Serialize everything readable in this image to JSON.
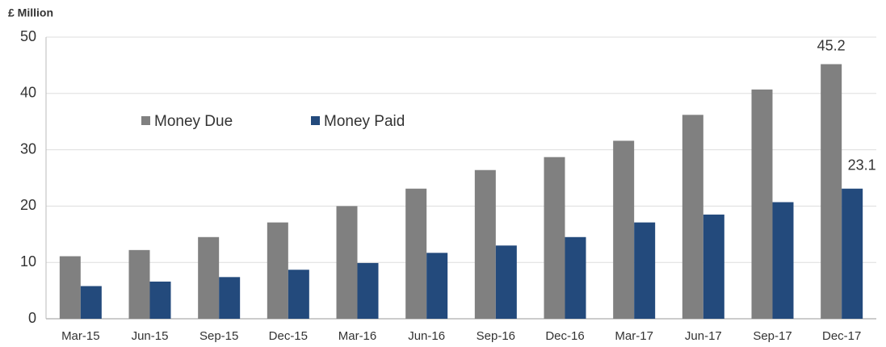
{
  "chart_data": {
    "type": "bar",
    "y_axis_label": "£ Million",
    "categories": [
      "Mar-15",
      "Jun-15",
      "Sep-15",
      "Dec-15",
      "Mar-16",
      "Jun-16",
      "Sep-16",
      "Dec-16",
      "Mar-17",
      "Jun-17",
      "Sep-17",
      "Dec-17"
    ],
    "series": [
      {
        "name": "Money Due",
        "color": "#808080",
        "values": [
          11.1,
          12.2,
          14.5,
          17.1,
          20.0,
          23.1,
          26.4,
          28.7,
          31.6,
          36.2,
          40.7,
          45.2
        ]
      },
      {
        "name": "Money Paid",
        "color": "#234a7c",
        "values": [
          5.8,
          6.6,
          7.4,
          8.7,
          9.9,
          11.7,
          13.0,
          14.5,
          17.1,
          18.5,
          20.7,
          23.1
        ]
      }
    ],
    "ylim": [
      0,
      50
    ],
    "yticks": [
      0,
      10,
      20,
      30,
      40,
      50
    ],
    "grid": true,
    "data_labels": "last",
    "legend": "upper-left"
  }
}
